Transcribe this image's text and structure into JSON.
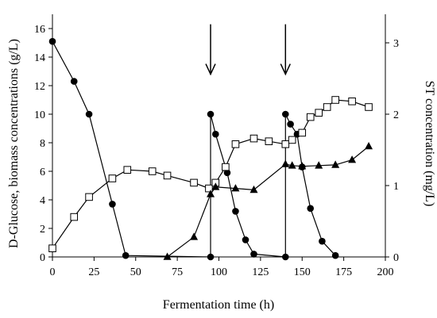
{
  "chart_data": {
    "type": "line",
    "xlabel": "Fermentation time (h)",
    "ylabel_left": "D-Glucose, biomass concentrations (g/L)",
    "ylabel_right": "ST concentration (mg/L)",
    "xlim": [
      0,
      200
    ],
    "ylim_left": [
      0,
      17
    ],
    "ylim_right": [
      0,
      3.4
    ],
    "x_ticks": [
      0,
      25,
      50,
      75,
      100,
      125,
      150,
      175,
      200
    ],
    "y_left_ticks": [
      0,
      2,
      4,
      6,
      8,
      10,
      12,
      14,
      16
    ],
    "y_right_ticks": [
      0,
      1,
      2,
      3
    ],
    "grid": false,
    "annotations": [
      {
        "type": "down-arrow",
        "x": 95,
        "y_from": 16.3,
        "y_to": 12.8
      },
      {
        "type": "down-arrow",
        "x": 140,
        "y_from": 16.3,
        "y_to": 12.8
      }
    ],
    "series": [
      {
        "marker": "circle-filled",
        "axis": "left",
        "x": [
          0,
          13,
          22,
          36,
          44,
          95,
          95,
          98,
          105,
          110,
          116,
          121,
          140,
          140,
          143,
          147,
          150,
          155,
          162,
          170
        ],
        "y": [
          15.1,
          12.3,
          10.0,
          3.7,
          0.1,
          0.0,
          10.0,
          8.6,
          5.9,
          3.2,
          1.2,
          0.2,
          0.0,
          10.0,
          9.3,
          8.6,
          6.3,
          3.4,
          1.1,
          0.1
        ]
      },
      {
        "marker": "square-open",
        "axis": "left",
        "x": [
          0,
          13,
          22,
          36,
          45,
          60,
          69,
          85,
          94,
          98,
          104,
          110,
          121,
          130,
          140,
          144,
          150,
          155,
          160,
          165,
          170,
          180,
          190
        ],
        "y": [
          0.6,
          2.8,
          4.2,
          5.5,
          6.1,
          6.0,
          5.7,
          5.2,
          4.8,
          5.2,
          6.3,
          7.9,
          8.3,
          8.1,
          7.9,
          8.2,
          8.7,
          9.8,
          10.1,
          10.5,
          11.0,
          10.9,
          10.5
        ]
      },
      {
        "marker": "triangle-filled",
        "axis": "right",
        "x": [
          69,
          85,
          95,
          98,
          110,
          121,
          140,
          144,
          150,
          160,
          170,
          180,
          190
        ],
        "y": [
          0.0,
          0.28,
          0.88,
          0.98,
          0.96,
          0.94,
          1.3,
          1.28,
          1.27,
          1.28,
          1.29,
          1.36,
          1.55
        ]
      }
    ]
  }
}
